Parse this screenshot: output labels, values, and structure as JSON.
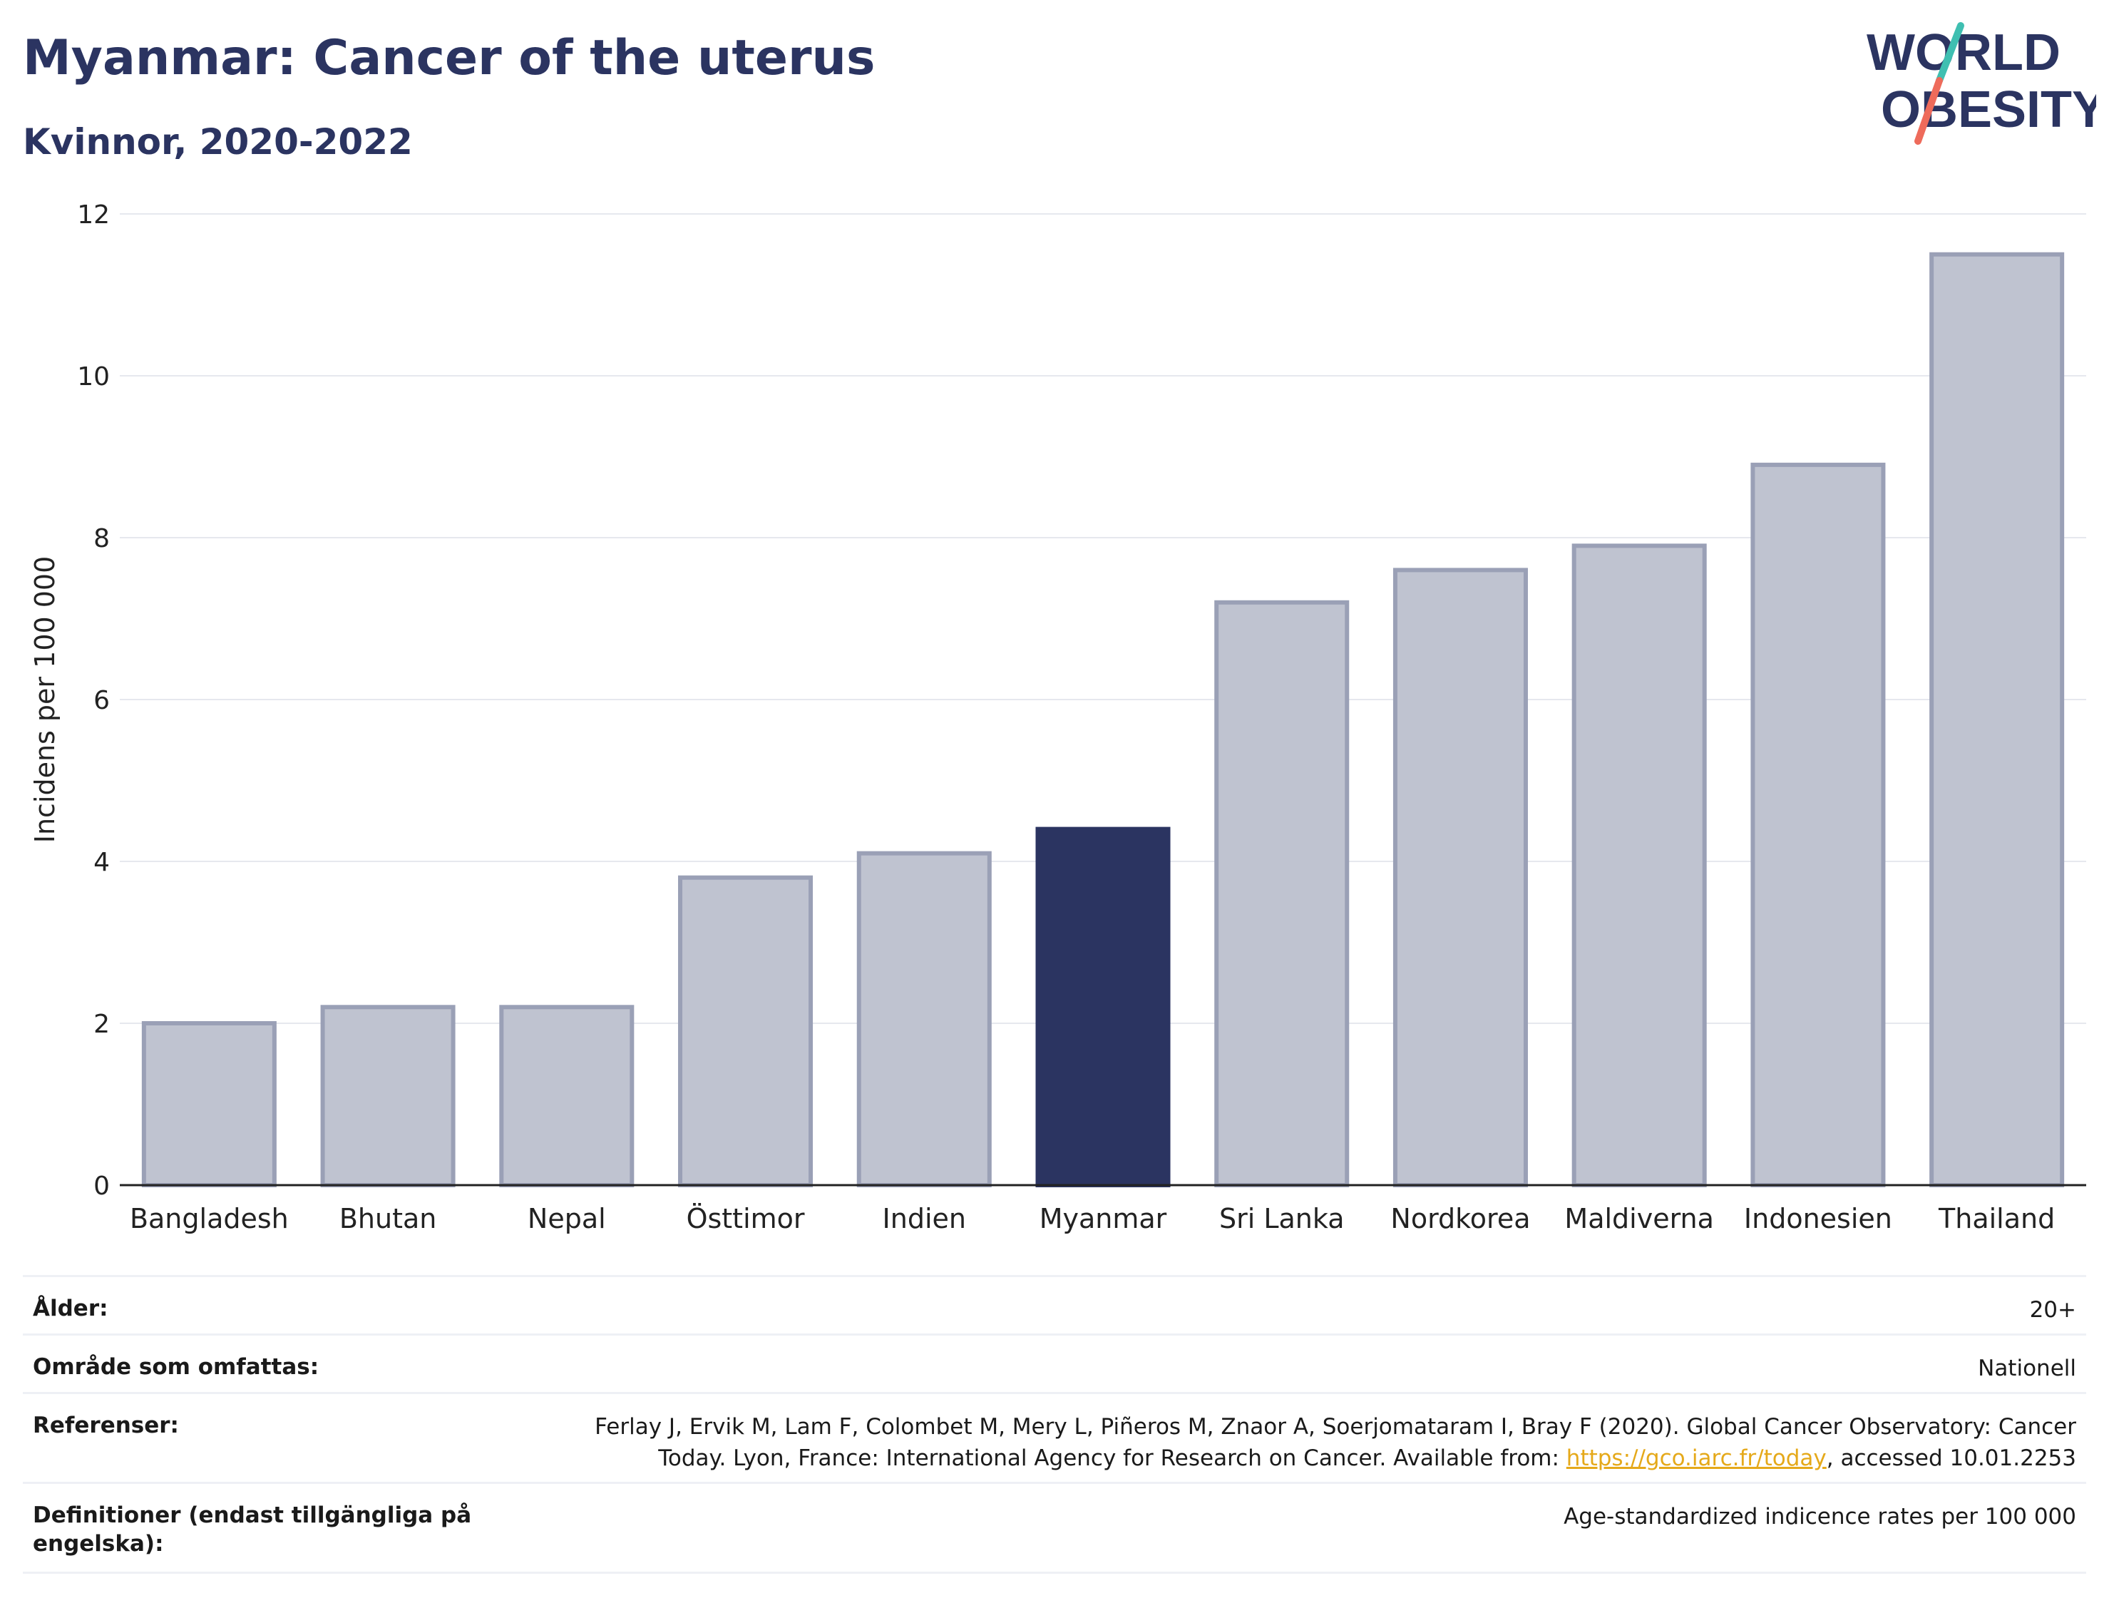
{
  "header": {
    "title": "Myanmar: Cancer of the uterus",
    "subtitle": "Kvinnor, 2020-2022"
  },
  "logo": {
    "line1": "WORLD",
    "line2": "OBESITY",
    "colors": {
      "text": "#2b3461",
      "slash_top": "#3fbfb1",
      "slash_bottom": "#ee6b5b"
    }
  },
  "chart_data": {
    "type": "bar",
    "title": "Myanmar: Cancer of the uterus",
    "subtitle": "Kvinnor, 2020-2022",
    "xlabel": "",
    "ylabel": "Incidens per 100 000",
    "ylim": [
      0,
      12
    ],
    "yticks": [
      0,
      2,
      4,
      6,
      8,
      10,
      12
    ],
    "grid": true,
    "categories": [
      "Bangladesh",
      "Bhutan",
      "Nepal",
      "Östtimor",
      "Indien",
      "Myanmar",
      "Sri Lanka",
      "Nordkorea",
      "Maldiverna",
      "Indonesien",
      "Thailand"
    ],
    "values": [
      2.0,
      2.2,
      2.2,
      3.8,
      4.1,
      4.4,
      7.2,
      7.6,
      7.9,
      8.9,
      11.5
    ],
    "highlight": "Myanmar",
    "colors": {
      "bar": "#bfc3d0",
      "bar_border": "#9aa0b6",
      "highlight": "#2b3461",
      "grid": "#e6e8ee",
      "axis": "#222222"
    }
  },
  "meta": {
    "age": {
      "label": "Ålder:",
      "value": "20+"
    },
    "coverage": {
      "label": "Område som omfattas:",
      "value": "Nationell"
    },
    "references": {
      "label": "Referenser:",
      "text_line1": "Ferlay J, Ervik M, Lam F, Colombet M, Mery L, Piñeros M, Znaor A, Soerjomataram I, Bray F (2020). Global Cancer Observatory: Cancer",
      "text_line2_before": "Today. Lyon, France: International Agency for Research on Cancer. Available from: ",
      "link": "https://gco.iarc.fr/today",
      "text_line2_after": ", accessed 10.01.2253"
    },
    "definitions": {
      "label": "Definitioner (endast tillgängliga på engelska):",
      "value": "Age-standardized indicence rates per 100 000"
    }
  }
}
